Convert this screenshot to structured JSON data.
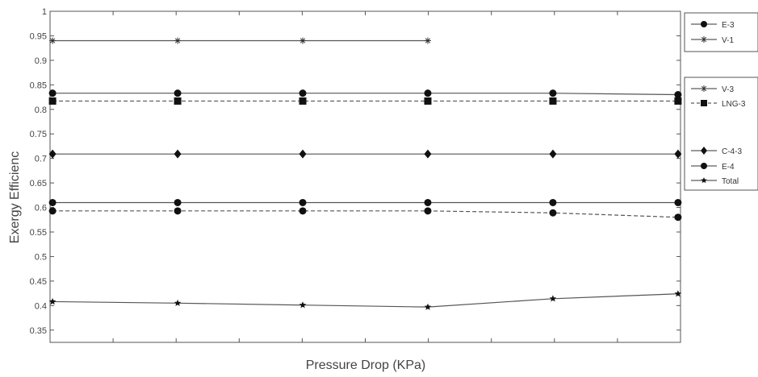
{
  "chart_data": {
    "type": "line",
    "xlabel": "Pressure Drop (KPa)",
    "ylabel": "Exergy Efficienc",
    "ylim": [
      0.325,
      1.0
    ],
    "yticks": [
      "0.35",
      "0.4",
      "0.45",
      "0.5",
      "0.55",
      "0.6",
      "0.65",
      "0.7",
      "0.75",
      "0.8",
      "0.85",
      "0.9",
      "0.95",
      "1"
    ],
    "xticks": [
      "",
      "",
      "",
      "",
      "",
      "",
      "",
      "",
      "",
      "",
      ""
    ],
    "grid": false,
    "legend_position": "right",
    "x": [
      0,
      1,
      2,
      3,
      4,
      5
    ],
    "series": [
      {
        "name": "E-3",
        "marker": "circle",
        "values": [
          0.833,
          0.833,
          0.833,
          0.833,
          0.833,
          0.83
        ]
      },
      {
        "name": "V-1",
        "marker": "plus-star",
        "values": [
          0.94,
          0.94,
          0.94,
          0.94,
          null,
          null
        ]
      },
      {
        "name": "V-3",
        "marker": "plus-star",
        "values": [
          null,
          null,
          null,
          null,
          null,
          null
        ]
      },
      {
        "name": "LNG-3",
        "marker": "square",
        "dashed": true,
        "values": [
          0.817,
          0.817,
          0.817,
          0.817,
          0.817,
          0.817
        ]
      },
      {
        "name": "C-4-3",
        "marker": "diamond",
        "values": [
          0.709,
          0.709,
          0.709,
          0.709,
          0.709,
          0.709
        ]
      },
      {
        "name": "E-4",
        "marker": "circle",
        "values": [
          0.61,
          0.61,
          0.61,
          0.61,
          0.61,
          0.61
        ]
      },
      {
        "name": "",
        "marker": "circle",
        "dashed": true,
        "values": [
          0.593,
          0.593,
          0.593,
          0.593,
          0.589,
          0.58
        ]
      },
      {
        "name": "Total",
        "marker": "star",
        "values": [
          0.408,
          0.405,
          0.401,
          0.397,
          0.414,
          0.424
        ]
      }
    ]
  }
}
